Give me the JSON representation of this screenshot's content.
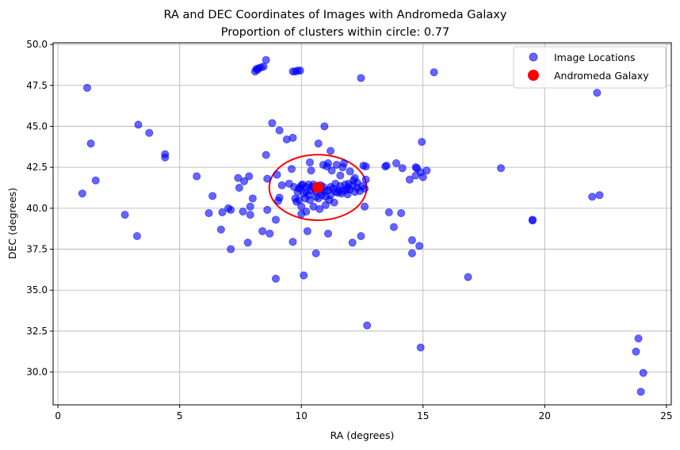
{
  "chart_data": {
    "type": "scatter",
    "title": "RA and DEC Coordinates of Images with Andromeda Galaxy",
    "subtitle": "Proportion of clusters within circle: 0.77",
    "xlabel": "RA (degrees)",
    "ylabel": "DEC (degrees)",
    "xlim": [
      -0.2,
      25.2
    ],
    "ylim": [
      28.0,
      50.1
    ],
    "xticks": [
      0,
      5,
      10,
      15,
      20,
      25
    ],
    "yticks": [
      30.0,
      32.5,
      35.0,
      37.5,
      40.0,
      42.5,
      45.0,
      47.5,
      50.0
    ],
    "xtick_labels": [
      "0",
      "5",
      "10",
      "15",
      "20",
      "25"
    ],
    "ytick_labels": [
      "30.0",
      "32.5",
      "35.0",
      "37.5",
      "40.0",
      "42.5",
      "45.0",
      "47.5",
      "50.0"
    ],
    "grid": true,
    "legend_position": "top-right",
    "colors": {
      "points": "#0000ff",
      "galaxy": "#ff0000",
      "circle": "#ff0000",
      "grid": "#b0b0b0"
    },
    "ellipse": {
      "center": [
        10.68,
        41.27
      ],
      "radius_x": 2.0,
      "radius_y": 2.0
    },
    "series": [
      {
        "name": "Image Locations",
        "marker": "circle",
        "alpha": 0.6,
        "points": [
          [
            1.0,
            40.9
          ],
          [
            1.2,
            47.35
          ],
          [
            1.35,
            43.95
          ],
          [
            1.55,
            41.7
          ],
          [
            2.75,
            39.6
          ],
          [
            3.25,
            38.3
          ],
          [
            3.3,
            45.1
          ],
          [
            3.75,
            44.6
          ],
          [
            4.4,
            43.1
          ],
          [
            4.4,
            43.3
          ],
          [
            5.7,
            41.95
          ],
          [
            6.2,
            39.7
          ],
          [
            6.35,
            40.75
          ],
          [
            6.7,
            38.7
          ],
          [
            6.75,
            39.75
          ],
          [
            7.0,
            40.0
          ],
          [
            7.1,
            39.9
          ],
          [
            7.1,
            37.5
          ],
          [
            7.4,
            41.85
          ],
          [
            7.45,
            41.25
          ],
          [
            7.6,
            39.8
          ],
          [
            7.65,
            41.65
          ],
          [
            7.8,
            37.9
          ],
          [
            7.85,
            41.95
          ],
          [
            7.9,
            40.1
          ],
          [
            7.9,
            39.6
          ],
          [
            8.0,
            40.6
          ],
          [
            8.1,
            48.35
          ],
          [
            8.15,
            48.5
          ],
          [
            8.2,
            48.45
          ],
          [
            8.25,
            48.55
          ],
          [
            8.35,
            48.6
          ],
          [
            8.45,
            48.65
          ],
          [
            8.55,
            49.05
          ],
          [
            8.4,
            38.6
          ],
          [
            8.55,
            43.25
          ],
          [
            8.6,
            41.8
          ],
          [
            8.6,
            39.9
          ],
          [
            8.7,
            38.45
          ],
          [
            8.8,
            45.2
          ],
          [
            8.95,
            35.7
          ],
          [
            8.95,
            39.3
          ],
          [
            9.0,
            42.05
          ],
          [
            9.05,
            40.45
          ],
          [
            9.1,
            40.65
          ],
          [
            9.1,
            44.75
          ],
          [
            9.2,
            41.4
          ],
          [
            9.4,
            44.2
          ],
          [
            9.5,
            41.5
          ],
          [
            9.6,
            42.4
          ],
          [
            9.65,
            48.35
          ],
          [
            9.65,
            44.3
          ],
          [
            9.65,
            37.95
          ],
          [
            9.75,
            48.35
          ],
          [
            9.85,
            48.4
          ],
          [
            9.95,
            48.4
          ],
          [
            9.7,
            41.3
          ],
          [
            9.75,
            40.6
          ],
          [
            9.8,
            40.4
          ],
          [
            9.85,
            41.0
          ],
          [
            9.9,
            40.5
          ],
          [
            9.95,
            41.25
          ],
          [
            10.0,
            39.65
          ],
          [
            10.0,
            40.1
          ],
          [
            10.05,
            41.45
          ],
          [
            10.1,
            35.9
          ],
          [
            10.15,
            40.6
          ],
          [
            10.2,
            41.0
          ],
          [
            10.2,
            39.8
          ],
          [
            10.25,
            38.6
          ],
          [
            10.3,
            41.45
          ],
          [
            10.35,
            40.5
          ],
          [
            10.35,
            42.8
          ],
          [
            10.4,
            42.3
          ],
          [
            10.45,
            41.3
          ],
          [
            10.5,
            40.1
          ],
          [
            10.55,
            41.2
          ],
          [
            10.6,
            40.7
          ],
          [
            10.6,
            37.25
          ],
          [
            10.7,
            43.95
          ],
          [
            10.75,
            39.95
          ],
          [
            10.8,
            41.4
          ],
          [
            10.85,
            40.8
          ],
          [
            10.9,
            42.65
          ],
          [
            10.95,
            45.0
          ],
          [
            10.95,
            41.05
          ],
          [
            11.0,
            40.2
          ],
          [
            11.05,
            42.55
          ],
          [
            11.1,
            38.45
          ],
          [
            11.1,
            42.75
          ],
          [
            11.15,
            40.5
          ],
          [
            11.2,
            43.5
          ],
          [
            11.2,
            41.3
          ],
          [
            11.25,
            42.3
          ],
          [
            11.35,
            40.35
          ],
          [
            11.4,
            41.0
          ],
          [
            11.45,
            42.65
          ],
          [
            11.55,
            41.1
          ],
          [
            11.6,
            42.0
          ],
          [
            11.65,
            40.9
          ],
          [
            11.7,
            42.5
          ],
          [
            11.75,
            42.75
          ],
          [
            11.85,
            41.1
          ],
          [
            11.9,
            41.25
          ],
          [
            11.95,
            41.5
          ],
          [
            12.0,
            42.25
          ],
          [
            12.1,
            37.9
          ],
          [
            12.15,
            41.7
          ],
          [
            12.2,
            41.85
          ],
          [
            12.3,
            41.55
          ],
          [
            12.45,
            47.95
          ],
          [
            12.45,
            38.3
          ],
          [
            12.55,
            42.6
          ],
          [
            12.6,
            40.1
          ],
          [
            12.65,
            41.75
          ],
          [
            12.7,
            32.85
          ],
          [
            13.45,
            42.55
          ],
          [
            13.6,
            39.75
          ],
          [
            13.8,
            38.85
          ],
          [
            13.9,
            42.75
          ],
          [
            14.1,
            39.7
          ],
          [
            14.15,
            42.45
          ],
          [
            14.45,
            41.75
          ],
          [
            14.55,
            38.05
          ],
          [
            14.55,
            37.25
          ],
          [
            14.7,
            42.0
          ],
          [
            14.7,
            42.5
          ],
          [
            14.75,
            42.45
          ],
          [
            14.85,
            37.7
          ],
          [
            14.9,
            31.5
          ],
          [
            14.95,
            44.05
          ],
          [
            14.9,
            42.2
          ],
          [
            15.0,
            41.9
          ],
          [
            15.15,
            42.3
          ],
          [
            15.45,
            48.3
          ],
          [
            16.85,
            35.8
          ],
          [
            18.2,
            42.45
          ],
          [
            19.5,
            39.3
          ],
          [
            19.5,
            39.25
          ],
          [
            21.95,
            40.7
          ],
          [
            22.25,
            40.8
          ],
          [
            22.15,
            47.05
          ],
          [
            23.75,
            31.25
          ],
          [
            23.85,
            32.05
          ],
          [
            23.95,
            28.8
          ],
          [
            24.05,
            29.95
          ],
          [
            9.9,
            41.2
          ],
          [
            10.0,
            41.4
          ],
          [
            10.1,
            40.9
          ],
          [
            10.2,
            41.3
          ],
          [
            10.3,
            40.8
          ],
          [
            10.4,
            41.1
          ],
          [
            10.5,
            41.45
          ],
          [
            10.6,
            41.0
          ],
          [
            10.7,
            40.6
          ],
          [
            10.8,
            41.0
          ],
          [
            10.9,
            41.3
          ],
          [
            11.0,
            40.7
          ],
          [
            11.1,
            41.1
          ],
          [
            11.2,
            40.8
          ],
          [
            11.3,
            41.2
          ],
          [
            11.4,
            41.5
          ],
          [
            11.5,
            40.95
          ],
          [
            11.6,
            41.35
          ],
          [
            11.7,
            41.05
          ],
          [
            11.8,
            41.45
          ],
          [
            11.9,
            40.85
          ],
          [
            12.0,
            41.15
          ],
          [
            12.1,
            41.4
          ],
          [
            12.2,
            41.0
          ],
          [
            12.3,
            41.25
          ],
          [
            12.4,
            41.05
          ],
          [
            12.5,
            41.35
          ],
          [
            12.6,
            41.2
          ],
          [
            12.65,
            42.55
          ],
          [
            13.5,
            42.6
          ]
        ]
      },
      {
        "name": "Andromeda Galaxy",
        "marker": "circle",
        "alpha": 1.0,
        "points": [
          [
            10.68,
            41.27
          ]
        ]
      }
    ]
  }
}
